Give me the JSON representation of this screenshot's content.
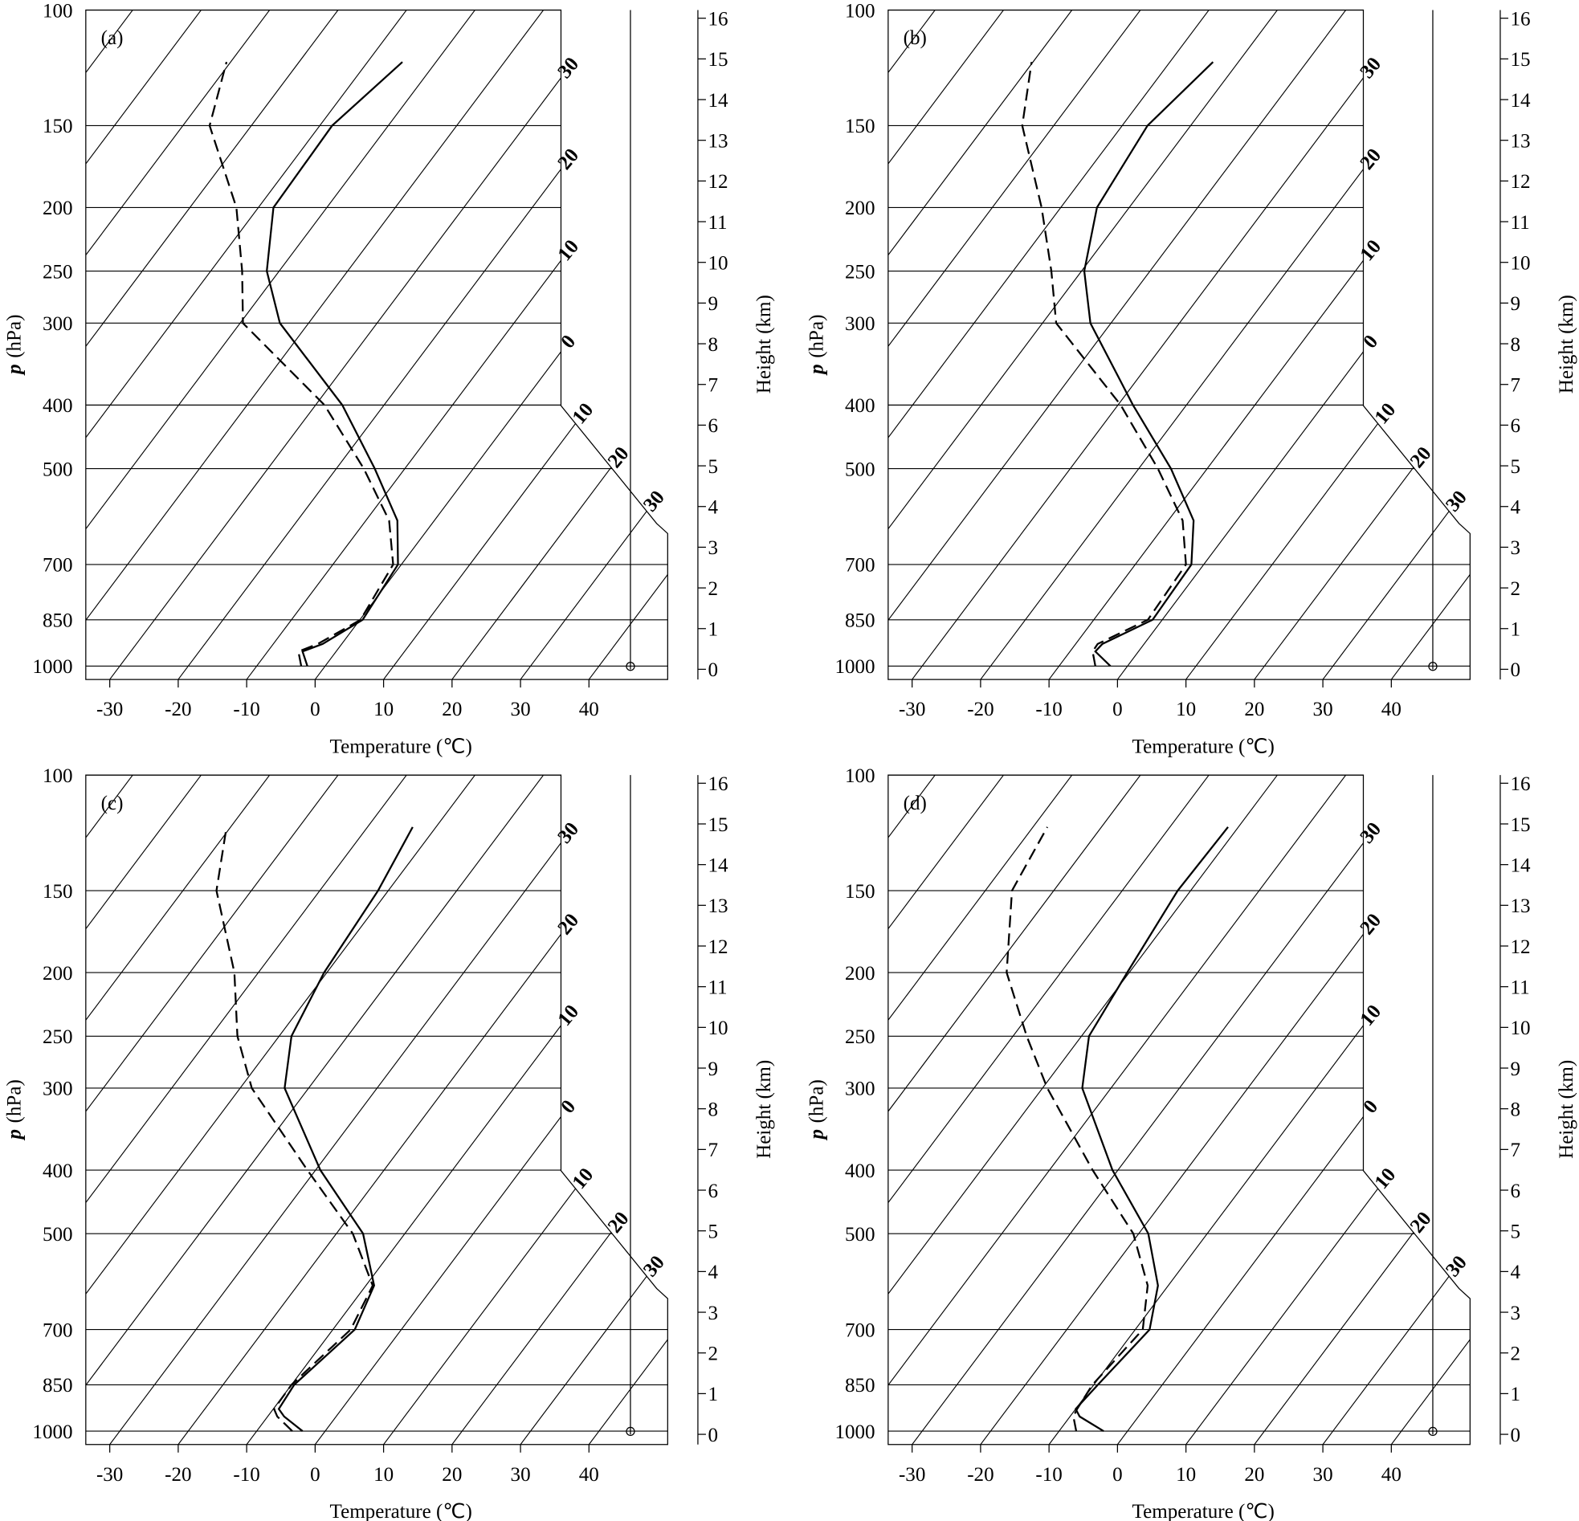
{
  "chart_data": [
    {
      "type": "skewt",
      "panel_label": "(a)",
      "xlabel": "Temperature (℃)",
      "ylabel_symbol": "p",
      "ylabel_unit": "(hPa)",
      "y2label": "Height (km)",
      "y": [
        1000,
        950,
        925,
        850,
        700,
        600,
        500,
        400,
        300,
        250,
        200,
        150,
        120
      ],
      "series": [
        {
          "style": "solid",
          "color": "#000000",
          "values": [
            -2.6,
            -4.9,
            -2.8,
            0.4,
            -0.5,
            -5.4,
            -14.4,
            -26.1,
            -44.2,
            -51.8,
            -57.8,
            -58.2,
            -54.9
          ]
        },
        {
          "style": "dashed",
          "color": "#000000",
          "values": [
            -3.5,
            -5.5,
            -3.5,
            0.1,
            -1.2,
            -6.6,
            -16.0,
            -28.7,
            -49.6,
            -55.4,
            -63.2,
            -76.1,
            -80.6
          ]
        }
      ],
      "xlim": [
        -33.5,
        51.5
      ],
      "xticks": [
        -30,
        -20,
        -10,
        0,
        10,
        20,
        30,
        40
      ],
      "ylim": [
        1048,
        100
      ],
      "yticks": [
        100,
        150,
        200,
        250,
        300,
        400,
        500,
        700,
        850,
        1000
      ],
      "log_y": true,
      "isotherms": [
        -100,
        -90,
        -80,
        -70,
        -60,
        -50,
        -40,
        -30,
        -20,
        -10,
        0,
        10,
        20,
        30,
        40
      ],
      "isotherm_labels": [
        {
          "value": -30,
          "label": "30"
        },
        {
          "value": -20,
          "label": "20"
        },
        {
          "value": -10,
          "label": "10"
        },
        0,
        10,
        20,
        30
      ],
      "y2lim": [
        -0.25,
        16.2
      ],
      "y2ticks": [
        0,
        1,
        2,
        3,
        4,
        5,
        6,
        7,
        8,
        9,
        10,
        11,
        12,
        13,
        14,
        15,
        16
      ]
    },
    {
      "type": "skewt",
      "panel_label": "(b)",
      "xlabel": "Temperature (℃)",
      "ylabel_symbol": "p",
      "ylabel_unit": "(hPa)",
      "y2label": "Height (km)",
      "y": [
        1000,
        950,
        925,
        850,
        700,
        600,
        500,
        400,
        300,
        250,
        200,
        150,
        120
      ],
      "series": [
        {
          "style": "solid",
          "color": "#000000",
          "values": [
            -2.5,
            -6.3,
            -6.1,
            -1.4,
            -1.8,
            -6.3,
            -15.3,
            -27.8,
            -43.0,
            -49.6,
            -54.7,
            -56.3,
            -53.7
          ]
        },
        {
          "style": "dashed",
          "color": "#000000",
          "values": [
            -4.7,
            -6.7,
            -6.8,
            -2.1,
            -2.6,
            -7.9,
            -17.2,
            -29.6,
            -48.0,
            -54.4,
            -62.8,
            -74.6,
            -80.2
          ]
        }
      ],
      "xlim": [
        -33.5,
        51.5
      ],
      "xticks": [
        -30,
        -20,
        -10,
        0,
        10,
        20,
        30,
        40
      ],
      "ylim": [
        1048,
        100
      ],
      "yticks": [
        100,
        150,
        200,
        250,
        300,
        400,
        500,
        700,
        850,
        1000
      ],
      "log_y": true,
      "isotherms": [
        -100,
        -90,
        -80,
        -70,
        -60,
        -50,
        -40,
        -30,
        -20,
        -10,
        0,
        10,
        20,
        30,
        40
      ],
      "isotherm_labels": [
        {
          "value": -30,
          "label": "30"
        },
        {
          "value": -20,
          "label": "20"
        },
        {
          "value": -10,
          "label": "10"
        },
        0,
        10,
        20,
        30
      ],
      "y2lim": [
        -0.25,
        16.2
      ],
      "y2ticks": [
        0,
        1,
        2,
        3,
        4,
        5,
        6,
        7,
        8,
        9,
        10,
        11,
        12,
        13,
        14,
        15,
        16
      ]
    },
    {
      "type": "skewt",
      "panel_label": "(c)",
      "xlabel": "Temperature (℃)",
      "ylabel_symbol": "p",
      "ylabel_unit": "(hPa)",
      "y2label": "Height (km)",
      "y": [
        1000,
        950,
        925,
        850,
        700,
        600,
        500,
        400,
        300,
        250,
        200,
        150,
        120
      ],
      "series": [
        {
          "style": "solid",
          "color": "#000000",
          "values": [
            -3.3,
            -7.6,
            -9.2,
            -9.6,
            -6.8,
            -8.8,
            -16.1,
            -29.3,
            -43.5,
            -48.2,
            -50.4,
            -51.5,
            -53.4
          ]
        },
        {
          "style": "dashed",
          "color": "#000000",
          "values": [
            -4.8,
            -8.6,
            -9.9,
            -10.0,
            -7.4,
            -9.0,
            -17.6,
            -31.2,
            -48.3,
            -56.1,
            -63.5,
            -75.1,
            -80.6
          ]
        }
      ],
      "xlim": [
        -33.5,
        51.5
      ],
      "xticks": [
        -30,
        -20,
        -10,
        0,
        10,
        20,
        30,
        40
      ],
      "ylim": [
        1048,
        100
      ],
      "yticks": [
        100,
        150,
        200,
        250,
        300,
        400,
        500,
        700,
        850,
        1000
      ],
      "log_y": true,
      "isotherms": [
        -100,
        -90,
        -80,
        -70,
        -60,
        -50,
        -40,
        -30,
        -20,
        -10,
        0,
        10,
        20,
        30,
        40
      ],
      "isotherm_labels": [
        {
          "value": -30,
          "label": "30"
        },
        {
          "value": -20,
          "label": "20"
        },
        {
          "value": -10,
          "label": "10"
        },
        0,
        10,
        20,
        30
      ],
      "y2lim": [
        -0.25,
        16.2
      ],
      "y2ticks": [
        0,
        1,
        2,
        3,
        4,
        5,
        6,
        7,
        8,
        9,
        10,
        11,
        12,
        13,
        14,
        15,
        16
      ]
    },
    {
      "type": "skewt",
      "panel_label": "(d)",
      "xlabel": "Temperature (℃)",
      "ylabel_symbol": "p",
      "ylabel_unit": "(hPa)",
      "y2label": "Height (km)",
      "y": [
        1000,
        950,
        925,
        850,
        700,
        600,
        500,
        400,
        300,
        250,
        200,
        150,
        120
      ],
      "series": [
        {
          "style": "solid",
          "color": "#000000",
          "values": [
            -3.5,
            -8.6,
            -10.0,
            -9.4,
            -7.9,
            -11.5,
            -18.6,
            -30.8,
            -44.2,
            -48.9,
            -50.3,
            -51.9,
            -51.5
          ]
        },
        {
          "style": "dashed",
          "color": "#000000",
          "values": [
            -7.5,
            -9.5,
            -9.8,
            -10.2,
            -8.9,
            -13.0,
            -20.8,
            -33.7,
            -49.3,
            -58.0,
            -67.9,
            -76.1,
            -77.9
          ]
        }
      ],
      "xlim": [
        -33.5,
        51.5
      ],
      "xticks": [
        -30,
        -20,
        -10,
        0,
        10,
        20,
        30,
        40
      ],
      "ylim": [
        1048,
        100
      ],
      "yticks": [
        100,
        150,
        200,
        250,
        300,
        400,
        500,
        700,
        850,
        1000
      ],
      "log_y": true,
      "isotherms": [
        -100,
        -90,
        -80,
        -70,
        -60,
        -50,
        -40,
        -30,
        -20,
        -10,
        0,
        10,
        20,
        30,
        40
      ],
      "isotherm_labels": [
        {
          "value": -30,
          "label": "30"
        },
        {
          "value": -20,
          "label": "20"
        },
        {
          "value": -10,
          "label": "10"
        },
        0,
        10,
        20,
        30
      ],
      "y2lim": [
        -0.25,
        16.2
      ],
      "y2ticks": [
        0,
        1,
        2,
        3,
        4,
        5,
        6,
        7,
        8,
        9,
        10,
        11,
        12,
        13,
        14,
        15,
        16
      ]
    }
  ]
}
